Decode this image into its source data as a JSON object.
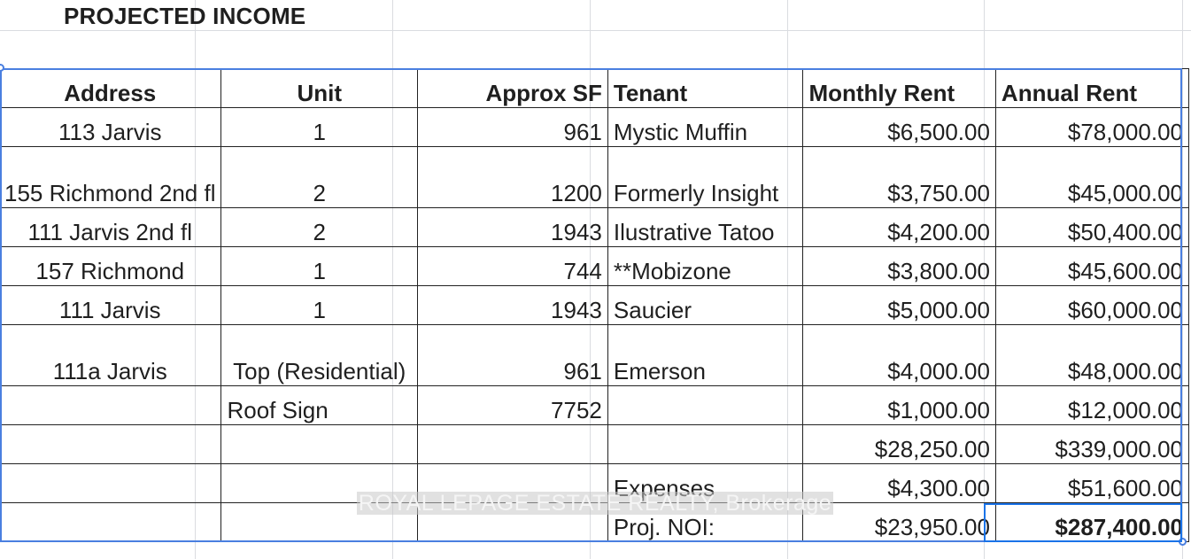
{
  "title": "PROJECTED INCOME",
  "headers": [
    "Address",
    "Unit",
    "Approx SF",
    "Tenant",
    "Monthly Rent",
    "Annual Rent"
  ],
  "rows": [
    {
      "address": "113 Jarvis",
      "unit": "1",
      "sf": "961",
      "tenant": "Mystic Muffin",
      "monthly": "$6,500.00",
      "annual": "$78,000.00"
    },
    {
      "address": "155 Richmond 2nd fl",
      "unit": "2",
      "sf": "1200",
      "tenant": "Formerly Insight",
      "monthly": "$3,750.00",
      "annual": "$45,000.00"
    },
    {
      "address": "111 Jarvis 2nd fl",
      "unit": "2",
      "sf": "1943",
      "tenant": "Ilustrative Tatoo",
      "monthly": "$4,200.00",
      "annual": "$50,400.00"
    },
    {
      "address": "157 Richmond",
      "unit": "1",
      "sf": "744",
      "tenant": "**Mobizone",
      "monthly": "$3,800.00",
      "annual": "$45,600.00"
    },
    {
      "address": "111 Jarvis",
      "unit": "1",
      "sf": "1943",
      "tenant": "Saucier",
      "monthly": "$5,000.00",
      "annual": "$60,000.00"
    },
    {
      "address": "111a Jarvis",
      "unit": "Top (Residential)",
      "sf": "961",
      "tenant": "Emerson",
      "monthly": "$4,000.00",
      "annual": "$48,000.00"
    },
    {
      "address": "",
      "unit": "Roof Sign",
      "sf": "7752",
      "tenant": "",
      "monthly": "$1,000.00",
      "annual": "$12,000.00"
    }
  ],
  "totals": {
    "monthly": "$28,250.00",
    "annual": "$339,000.00"
  },
  "expenses": {
    "label": "Expenses",
    "monthly": "$4,300.00",
    "annual": "$51,600.00"
  },
  "noi": {
    "label": "Proj. NOI:",
    "monthly": "$23,950.00",
    "annual": "$287,400.00"
  },
  "watermark": "ROYAL LEPAGE ESTATE REALTY, Brokerage",
  "colors": {
    "selection": "#4a7fe0",
    "active_cell": "#1a73e8",
    "gridline": "#dadce0"
  }
}
